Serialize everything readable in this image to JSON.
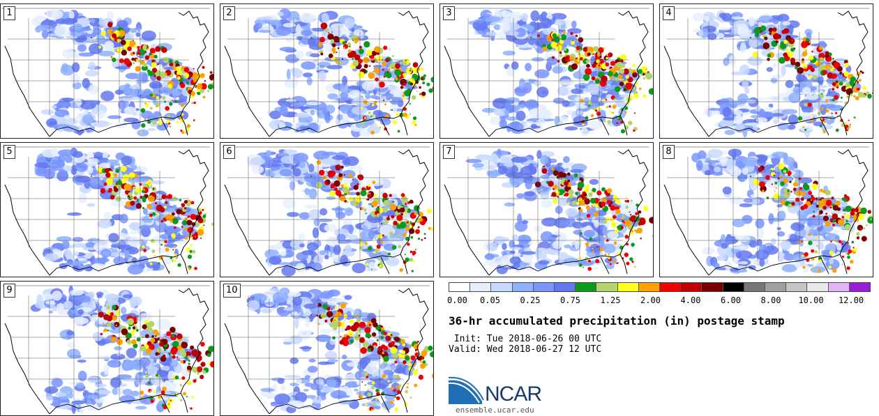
{
  "panels": [
    {
      "label": "1"
    },
    {
      "label": "2"
    },
    {
      "label": "3"
    },
    {
      "label": "4"
    },
    {
      "label": "5"
    },
    {
      "label": "6"
    },
    {
      "label": "7"
    },
    {
      "label": "8"
    },
    {
      "label": "9"
    },
    {
      "label": "10"
    }
  ],
  "colorbar": {
    "colors": [
      "#ffffff",
      "#e6efff",
      "#c8d8ff",
      "#8fb0ff",
      "#7a95ff",
      "#6478f0",
      "#0a9a1e",
      "#b2d46a",
      "#ffff1e",
      "#ffa000",
      "#f00000",
      "#c00000",
      "#7a0000",
      "#000000",
      "#777777",
      "#a0a0a0",
      "#c4c4c4",
      "#e8e8e8",
      "#e0b4f5",
      "#9a1ed8"
    ],
    "labels": [
      "0.00",
      "0.05",
      "0.25",
      "0.75",
      "1.25",
      "2.00",
      "4.00",
      "6.00",
      "8.00",
      "10.00",
      "12.00"
    ]
  },
  "title": "36-hr accumulated precipitation (in) postage stamp",
  "init": " Init: Tue 2018-06-26 00 UTC",
  "valid": "Valid: Wed 2018-06-27 12 UTC",
  "logo": {
    "text": "NCAR",
    "url": "ensemble.ucar.edu",
    "colors": {
      "blue": "#1f6fb5",
      "navy": "#1a3a6b"
    }
  }
}
